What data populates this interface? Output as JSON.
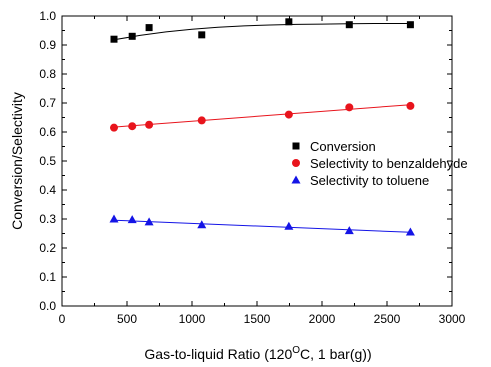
{
  "chart_data": {
    "type": "scatter",
    "xlabel": "Gas-to-liquid Ratio (120",
    "xlabel_superscript": "O",
    "xlabel_suffix": "C, 1 bar(g))",
    "ylabel": "Conversion/Selectivity",
    "xlim": [
      0,
      3000
    ],
    "ylim": [
      0.0,
      1.0
    ],
    "xticks": [
      0,
      500,
      1000,
      1500,
      2000,
      2500,
      3000
    ],
    "xtick_labels": [
      "0",
      "500",
      "1000",
      "1500",
      "2000",
      "2500",
      "3000"
    ],
    "yticks": [
      0.0,
      0.1,
      0.2,
      0.3,
      0.4,
      0.5,
      0.6,
      0.7,
      0.8,
      0.9,
      1.0
    ],
    "ytick_labels": [
      "0.0",
      "0.1",
      "0.2",
      "0.3",
      "0.4",
      "0.5",
      "0.6",
      "0.7",
      "0.8",
      "0.9",
      "1.0"
    ],
    "grid": false,
    "legend_position": "right",
    "series": [
      {
        "name": "Conversion",
        "marker": "square",
        "color": "#000000",
        "x": [
          400,
          540,
          670,
          1075,
          1745,
          2210,
          2680
        ],
        "y": [
          0.92,
          0.93,
          0.96,
          0.935,
          0.98,
          0.97,
          0.97
        ],
        "fit_x": [
          400,
          600,
          800,
          1000,
          1200,
          1400,
          1600,
          1800,
          2000,
          2200,
          2400,
          2680
        ],
        "fit_y": [
          0.918,
          0.933,
          0.945,
          0.954,
          0.961,
          0.966,
          0.969,
          0.971,
          0.972,
          0.973,
          0.974,
          0.974
        ]
      },
      {
        "name": "Selectivity to benzaldehyde",
        "marker": "circle",
        "color": "#e8141c",
        "x": [
          400,
          540,
          670,
          1075,
          1745,
          2210,
          2680
        ],
        "y": [
          0.615,
          0.62,
          0.625,
          0.64,
          0.66,
          0.685,
          0.69
        ],
        "fit_x": [
          400,
          2680
        ],
        "fit_y": [
          0.617,
          0.694
        ]
      },
      {
        "name": "Selectivity to toluene",
        "marker": "triangle",
        "color": "#1414e6",
        "x": [
          400,
          540,
          670,
          1075,
          1745,
          2210,
          2680
        ],
        "y": [
          0.3,
          0.298,
          0.29,
          0.28,
          0.275,
          0.26,
          0.255
        ],
        "fit_x": [
          400,
          2680
        ],
        "fit_y": [
          0.296,
          0.254
        ]
      }
    ]
  }
}
